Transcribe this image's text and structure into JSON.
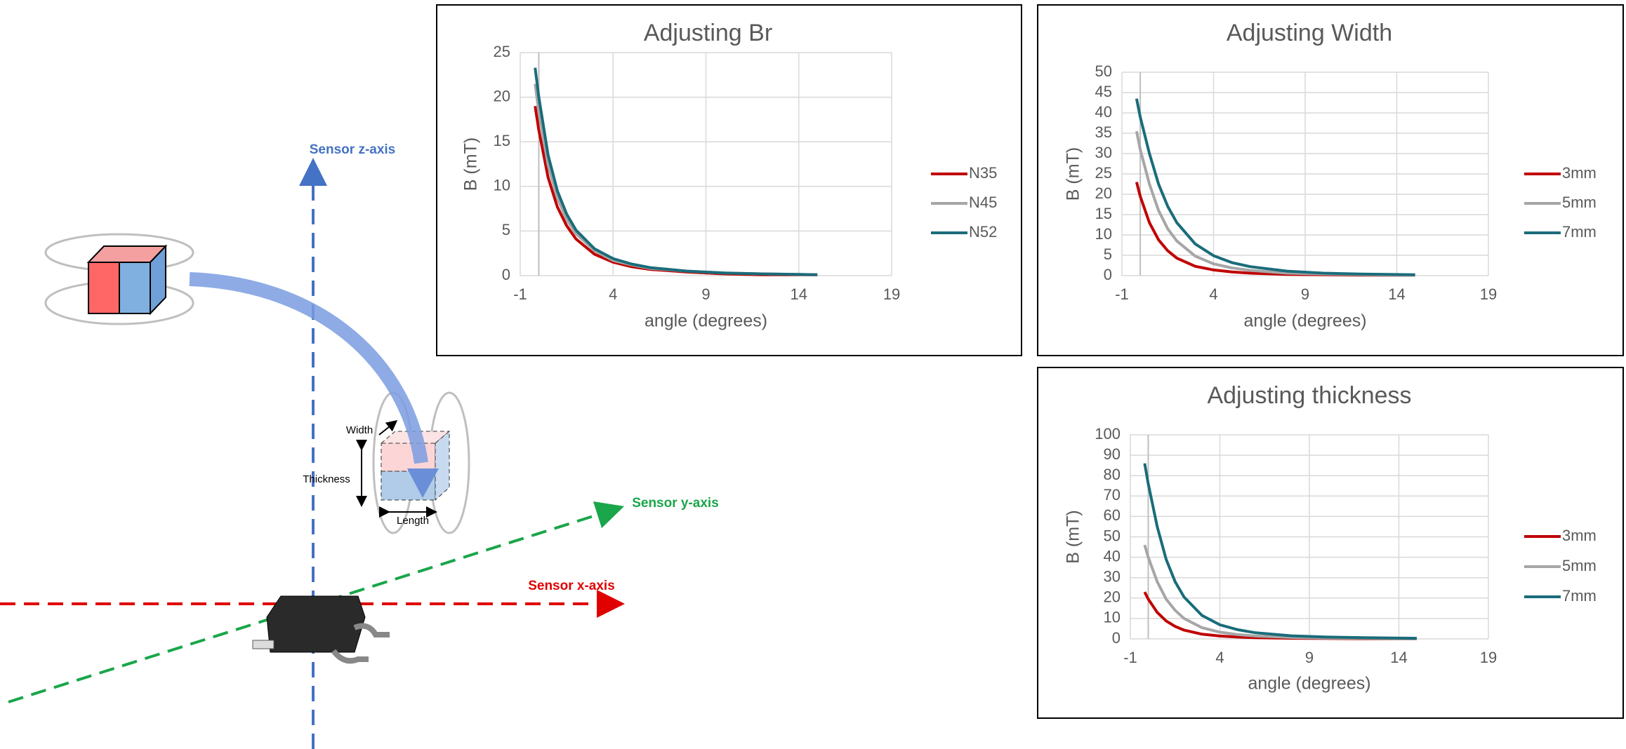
{
  "chart_data": [
    {
      "type": "line",
      "title": "Adjusting Br",
      "x_label": "angle (degrees)",
      "y_label": "B (mT)",
      "x": [
        -0.2,
        0,
        0.5,
        1,
        1.5,
        2,
        3,
        4,
        5,
        6,
        8,
        10,
        12,
        15
      ],
      "series": [
        {
          "name": "N35",
          "color": "#c00000",
          "values": [
            19,
            16.3,
            11,
            7.7,
            5.6,
            4.1,
            2.4,
            1.5,
            1,
            0.7,
            0.4,
            0.2,
            0.1,
            0.1
          ]
        },
        {
          "name": "N45",
          "color": "#a6a6a6",
          "values": [
            21.5,
            18.4,
            12.4,
            8.7,
            6.3,
            4.7,
            2.8,
            1.7,
            1.2,
            0.8,
            0.5,
            0.3,
            0.2,
            0.1
          ]
        },
        {
          "name": "N52",
          "color": "#1a6c7a",
          "values": [
            23.3,
            20,
            13.5,
            9.5,
            6.9,
            5.1,
            3,
            1.9,
            1.3,
            0.9,
            0.5,
            0.3,
            0.2,
            0.1
          ]
        }
      ],
      "xlim": [
        -1,
        19
      ],
      "xticks": [
        -1,
        4,
        9,
        14,
        19
      ],
      "ylim": [
        0,
        25
      ],
      "yticks": [
        0,
        5,
        10,
        15,
        20,
        25
      ],
      "grid": true,
      "legend": "right"
    },
    {
      "type": "line",
      "title": "Adjusting Width",
      "x_label": "angle (degrees)",
      "y_label": "B (mT)",
      "x": [
        -0.2,
        0,
        0.5,
        1,
        1.5,
        2,
        3,
        4,
        5,
        6,
        8,
        10,
        12,
        15
      ],
      "series": [
        {
          "name": "3mm",
          "color": "#c00000",
          "values": [
            23,
            19.5,
            13,
            8.8,
            6.1,
            4.3,
            2.3,
            1.4,
            0.9,
            0.6,
            0.3,
            0.2,
            0.1,
            0.1
          ]
        },
        {
          "name": "5mm",
          "color": "#a6a6a6",
          "values": [
            35.5,
            31,
            22.5,
            16,
            11.5,
            8.5,
            4.8,
            2.9,
            1.9,
            1.3,
            0.6,
            0.4,
            0.2,
            0.1
          ]
        },
        {
          "name": "7mm",
          "color": "#1a6c7a",
          "values": [
            43.5,
            39,
            30,
            22.5,
            17,
            13,
            7.8,
            4.9,
            3.2,
            2.2,
            1.1,
            0.6,
            0.4,
            0.2
          ]
        }
      ],
      "xlim": [
        -1,
        19
      ],
      "xticks": [
        -1,
        4,
        9,
        14,
        19
      ],
      "ylim": [
        0,
        50
      ],
      "yticks": [
        0,
        5,
        10,
        15,
        20,
        25,
        30,
        35,
        40,
        45,
        50
      ],
      "grid": true,
      "legend": "right"
    },
    {
      "type": "line",
      "title": "Adjusting thickness",
      "x_label": "angle (degrees)",
      "y_label": "B (mT)",
      "x": [
        -0.2,
        0,
        0.5,
        1,
        1.5,
        2,
        3,
        4,
        5,
        6,
        8,
        10,
        12,
        15
      ],
      "series": [
        {
          "name": "3mm",
          "color": "#c00000",
          "values": [
            23,
            19.5,
            13,
            8.8,
            6.1,
            4.3,
            2.3,
            1.4,
            0.9,
            0.6,
            0.3,
            0.2,
            0.1,
            0.1
          ]
        },
        {
          "name": "5mm",
          "color": "#a6a6a6",
          "values": [
            46,
            40,
            28,
            19.5,
            14,
            10,
            5.5,
            3.3,
            2.1,
            1.4,
            0.7,
            0.4,
            0.3,
            0.1
          ]
        },
        {
          "name": "7mm",
          "color": "#1a6c7a",
          "values": [
            86,
            76,
            55,
            39,
            28,
            20.5,
            11.5,
            6.9,
            4.5,
            3,
            1.5,
            0.9,
            0.6,
            0.3
          ]
        }
      ],
      "xlim": [
        -1,
        19
      ],
      "xticks": [
        -1,
        4,
        9,
        14,
        19
      ],
      "ylim": [
        0,
        100
      ],
      "yticks": [
        0,
        10,
        20,
        30,
        40,
        50,
        60,
        70,
        80,
        90,
        100
      ],
      "grid": true,
      "legend": "right"
    }
  ],
  "diagram": {
    "z_axis": "Sensor z-axis",
    "y_axis": "Sensor y-axis",
    "x_axis": "Sensor x-axis",
    "width": "Width",
    "thickness": "Thickness",
    "length": "Length"
  }
}
